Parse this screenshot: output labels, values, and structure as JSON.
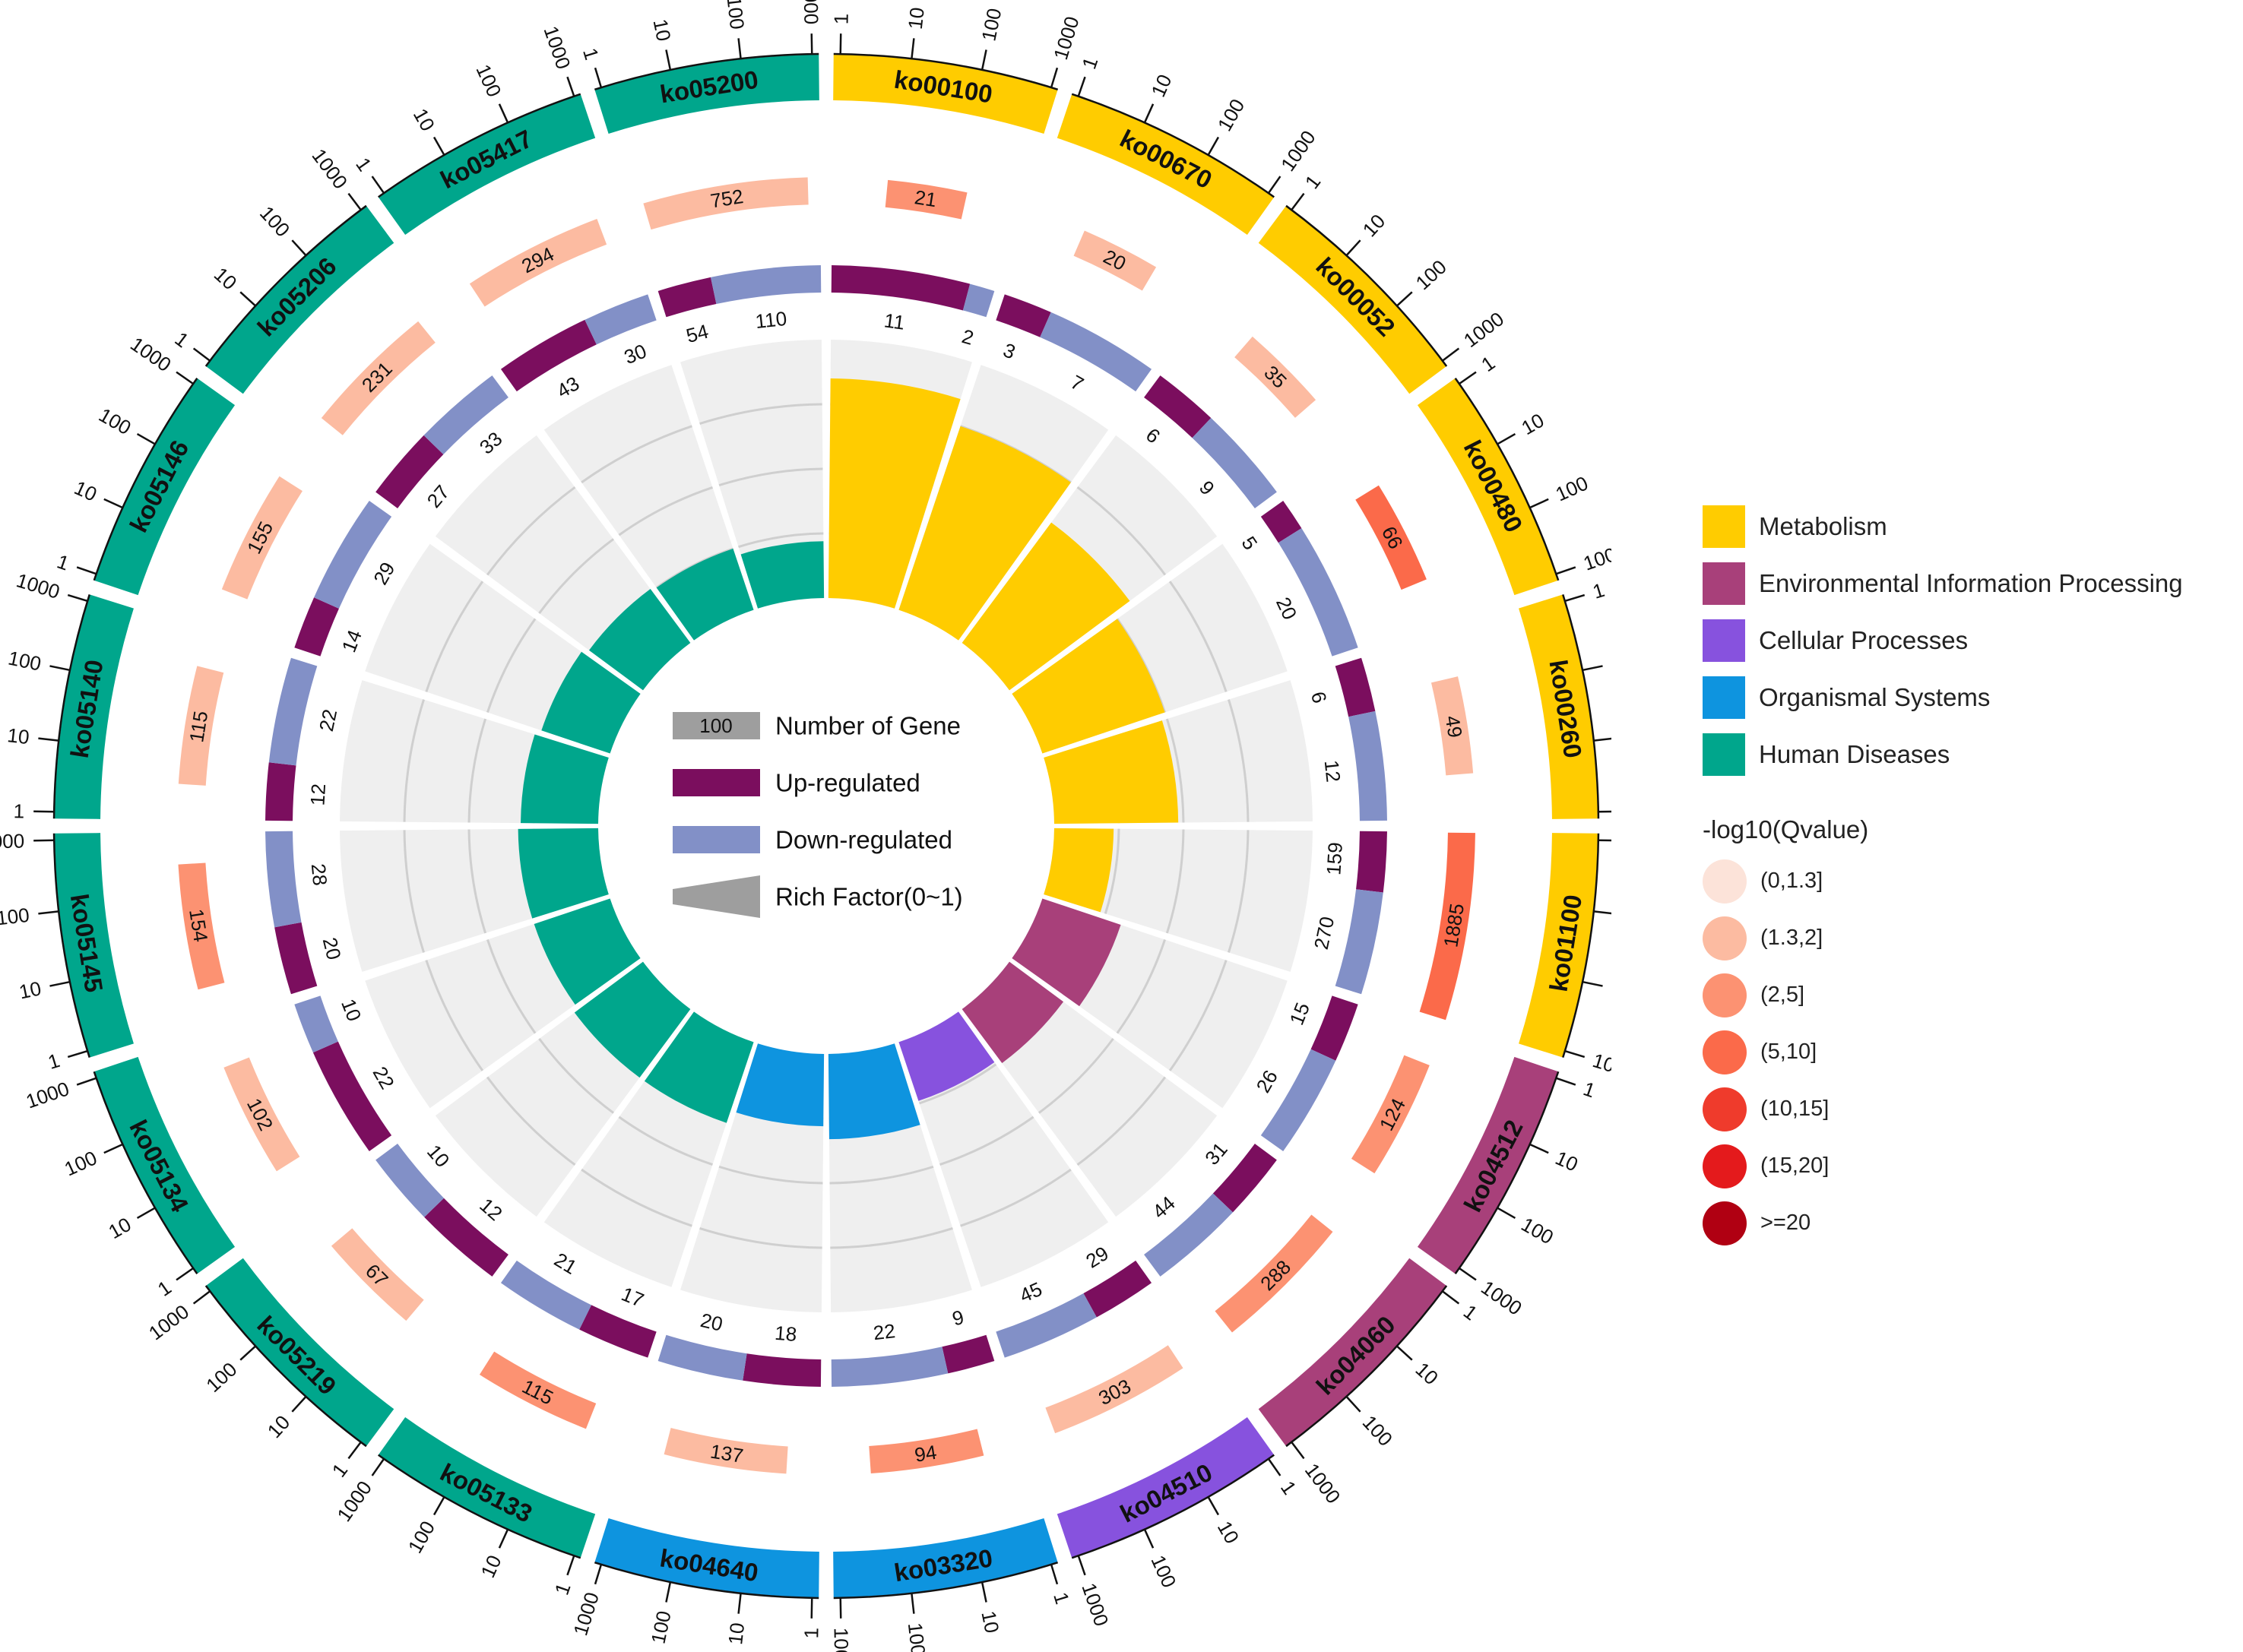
{
  "chart_data": {
    "type": "circos",
    "axis_ticks": [
      "1",
      "10",
      "100",
      "1000"
    ],
    "center_legend": {
      "number_box": "100",
      "number_label": "Number of Gene",
      "up_label": "Up-regulated",
      "down_label": "Down-regulated",
      "rich_label": "Rich Factor(0~1)"
    },
    "categories": [
      {
        "name": "Metabolism",
        "color": "#FFCC00"
      },
      {
        "name": "Environmental Information Processing",
        "color": "#A8407A"
      },
      {
        "name": "Cellular Processes",
        "color": "#8752DE"
      },
      {
        "name": "Organismal Systems",
        "color": "#0E94DF"
      },
      {
        "name": "Human Diseases",
        "color": "#00A68C"
      }
    ],
    "qvalue_legend": {
      "title": "-log10(Qvalue)",
      "bins": [
        {
          "label": "(0,1.3]",
          "color": "#FCE3D9"
        },
        {
          "label": "(1.3,2]",
          "color": "#FCBBA1"
        },
        {
          "label": "(2,5]",
          "color": "#FC9272"
        },
        {
          "label": "(5,10]",
          "color": "#FB6A4A"
        },
        {
          "label": "(10,15]",
          "color": "#EF3B2C"
        },
        {
          "label": "(15,20]",
          "color": "#E41A1C"
        },
        {
          "label": ">=20",
          "color": "#B00012"
        }
      ]
    },
    "pathways": [
      {
        "id": "ko00100",
        "category": 0,
        "bg_genes": 21,
        "q_bin": 2,
        "up": 11,
        "down": 2,
        "rich": 0.85
      },
      {
        "id": "ko00670",
        "category": 0,
        "bg_genes": 20,
        "q_bin": 1,
        "up": 3,
        "down": 7,
        "rich": 0.75
      },
      {
        "id": "ko00052",
        "category": 0,
        "bg_genes": 35,
        "q_bin": 1,
        "up": 6,
        "down": 9,
        "rich": 0.58
      },
      {
        "id": "ko00480",
        "category": 0,
        "bg_genes": 66,
        "q_bin": 3,
        "up": 5,
        "down": 20,
        "rich": 0.5
      },
      {
        "id": "ko00260",
        "category": 0,
        "bg_genes": 49,
        "q_bin": 1,
        "up": 6,
        "down": 12,
        "rich": 0.48
      },
      {
        "id": "ko01100",
        "category": 0,
        "bg_genes": 1885,
        "q_bin": 3,
        "up": 159,
        "down": 270,
        "rich": 0.23
      },
      {
        "id": "ko04512",
        "category": 1,
        "bg_genes": 124,
        "q_bin": 2,
        "up": 15,
        "down": 26,
        "rich": 0.32
      },
      {
        "id": "ko04060",
        "category": 1,
        "bg_genes": 288,
        "q_bin": 2,
        "up": 31,
        "down": 44,
        "rich": 0.26
      },
      {
        "id": "ko04510",
        "category": 2,
        "bg_genes": 303,
        "q_bin": 1,
        "up": 29,
        "down": 45,
        "rich": 0.24
      },
      {
        "id": "ko03320",
        "category": 3,
        "bg_genes": 94,
        "q_bin": 2,
        "up": 9,
        "down": 22,
        "rich": 0.33
      },
      {
        "id": "ko04640",
        "category": 3,
        "bg_genes": 137,
        "q_bin": 1,
        "up": 18,
        "down": 20,
        "rich": 0.28
      },
      {
        "id": "ko05133",
        "category": 4,
        "bg_genes": 115,
        "q_bin": 2,
        "up": 17,
        "down": 21,
        "rich": 0.33
      },
      {
        "id": "ko05219",
        "category": 4,
        "bg_genes": 67,
        "q_bin": 1,
        "up": 12,
        "down": 10,
        "rich": 0.33
      },
      {
        "id": "ko05134",
        "category": 4,
        "bg_genes": 102,
        "q_bin": 1,
        "up": 22,
        "down": 10,
        "rich": 0.31
      },
      {
        "id": "ko05145",
        "category": 4,
        "bg_genes": 154,
        "q_bin": 2,
        "up": 20,
        "down": 28,
        "rich": 0.31
      },
      {
        "id": "ko05140",
        "category": 4,
        "bg_genes": 115,
        "q_bin": 1,
        "up": 12,
        "down": 22,
        "rich": 0.3
      },
      {
        "id": "ko05146",
        "category": 4,
        "bg_genes": 155,
        "q_bin": 1,
        "up": 14,
        "down": 29,
        "rich": 0.28
      },
      {
        "id": "ko05206",
        "category": 4,
        "bg_genes": 231,
        "q_bin": 1,
        "up": 27,
        "down": 33,
        "rich": 0.26
      },
      {
        "id": "ko05417",
        "category": 4,
        "bg_genes": 294,
        "q_bin": 1,
        "up": 43,
        "down": 30,
        "rich": 0.25
      },
      {
        "id": "ko05200",
        "category": 4,
        "bg_genes": 752,
        "q_bin": 1,
        "up": 54,
        "down": 110,
        "rich": 0.22
      }
    ]
  },
  "colors": {
    "up": "#7B0E5E",
    "down": "#8290C7",
    "number_box": "#9E9E9E",
    "rich_bg": "#EFEFEF",
    "grid": "#CFCFCF"
  }
}
